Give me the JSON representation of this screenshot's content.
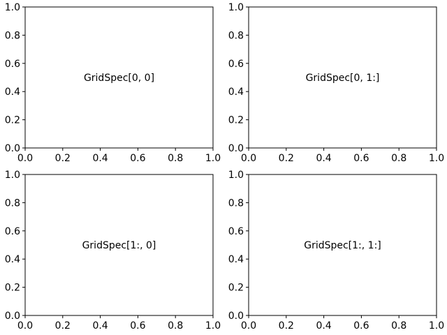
{
  "chart_data": [
    {
      "type": "scatter",
      "annotation": "GridSpec[0, 0]",
      "xlim": [
        0,
        1
      ],
      "ylim": [
        0,
        1
      ],
      "x_ticks": [
        0.0,
        0.2,
        0.4,
        0.6,
        0.8,
        1.0
      ],
      "y_ticks": [
        0.0,
        0.2,
        0.4,
        0.6,
        0.8,
        1.0
      ],
      "x_tick_labels": [
        "0.0",
        "0.2",
        "0.4",
        "0.6",
        "0.8",
        "1.0"
      ],
      "y_tick_labels": [
        "0.0",
        "0.2",
        "0.4",
        "0.6",
        "0.8",
        "1.0"
      ],
      "grid": false,
      "series": []
    },
    {
      "type": "scatter",
      "annotation": "GridSpec[0, 1:]",
      "xlim": [
        0,
        1
      ],
      "ylim": [
        0,
        1
      ],
      "x_ticks": [
        0.0,
        0.2,
        0.4,
        0.6,
        0.8,
        1.0
      ],
      "y_ticks": [
        0.0,
        0.2,
        0.4,
        0.6,
        0.8,
        1.0
      ],
      "x_tick_labels": [
        "0.0",
        "0.2",
        "0.4",
        "0.6",
        "0.8",
        "1.0"
      ],
      "y_tick_labels": [
        "0.0",
        "0.2",
        "0.4",
        "0.6",
        "0.8",
        "1.0"
      ],
      "grid": false,
      "series": []
    },
    {
      "type": "scatter",
      "annotation": "GridSpec[1:, 0]",
      "xlim": [
        0,
        1
      ],
      "ylim": [
        0,
        1
      ],
      "x_ticks": [
        0.0,
        0.2,
        0.4,
        0.6,
        0.8,
        1.0
      ],
      "y_ticks": [
        0.0,
        0.2,
        0.4,
        0.6,
        0.8,
        1.0
      ],
      "x_tick_labels": [
        "0.0",
        "0.2",
        "0.4",
        "0.6",
        "0.8",
        "1.0"
      ],
      "y_tick_labels": [
        "0.0",
        "0.2",
        "0.4",
        "0.6",
        "0.8",
        "1.0"
      ],
      "grid": false,
      "series": []
    },
    {
      "type": "scatter",
      "annotation": "GridSpec[1:, 1:]",
      "xlim": [
        0,
        1
      ],
      "ylim": [
        0,
        1
      ],
      "x_ticks": [
        0.0,
        0.2,
        0.4,
        0.6,
        0.8,
        1.0
      ],
      "y_ticks": [
        0.0,
        0.2,
        0.4,
        0.6,
        0.8,
        1.0
      ],
      "x_tick_labels": [
        "0.0",
        "0.2",
        "0.4",
        "0.6",
        "0.8",
        "1.0"
      ],
      "y_tick_labels": [
        "0.0",
        "0.2",
        "0.4",
        "0.6",
        "0.8",
        "1.0"
      ],
      "grid": false,
      "series": []
    }
  ],
  "colors": {
    "background": "#ffffff",
    "axes": "#000000"
  }
}
